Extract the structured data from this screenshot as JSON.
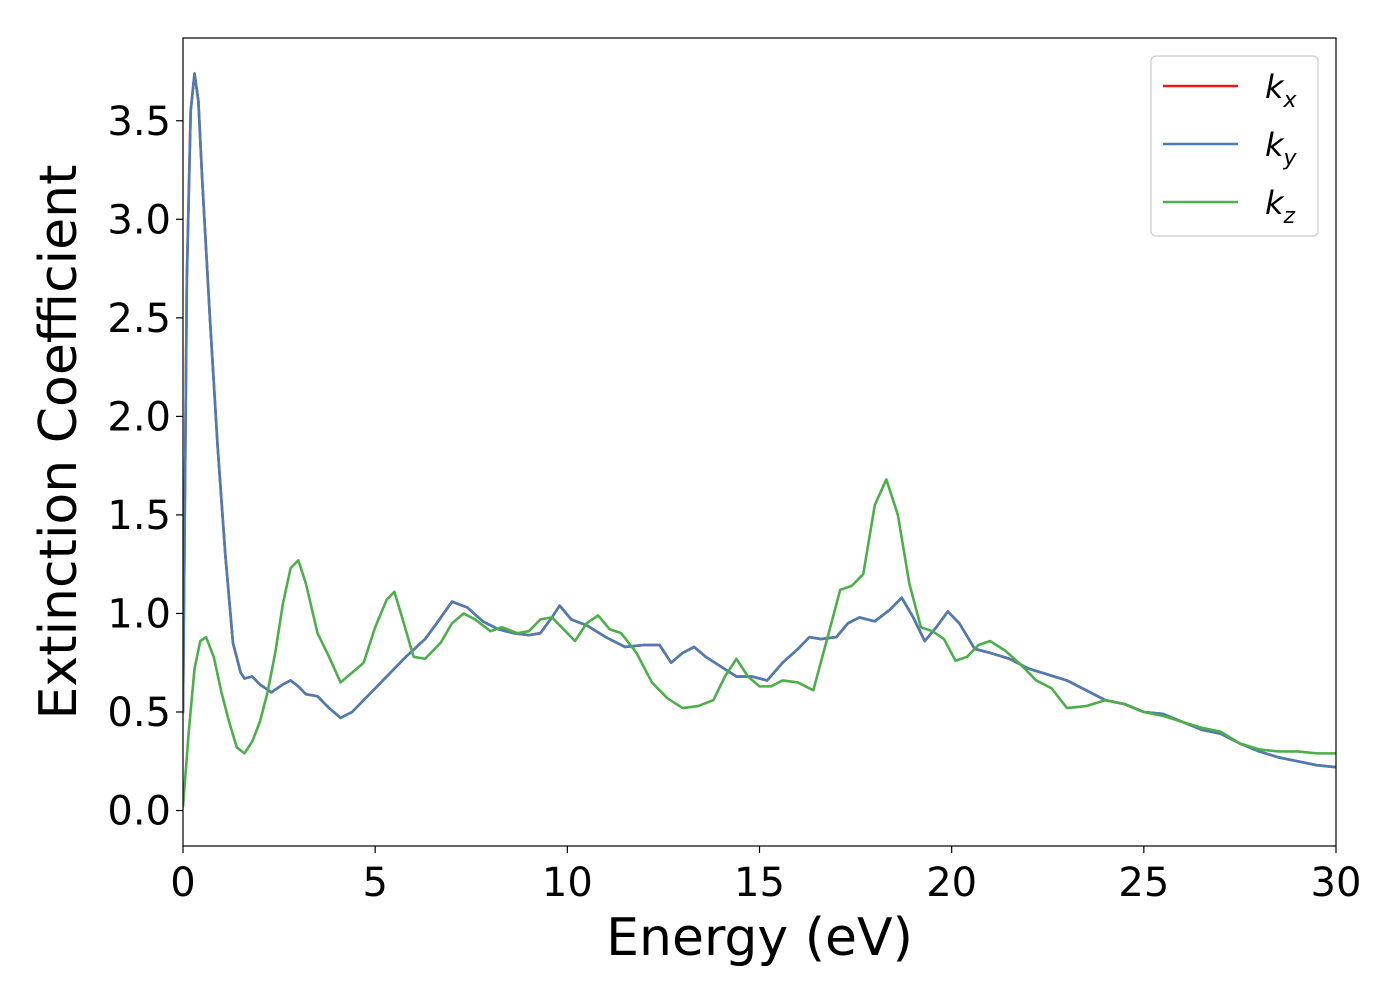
{
  "chart_data": {
    "type": "line",
    "xlabel": "Energy (eV)",
    "ylabel": "Extinction Coefficient",
    "xlim": [
      0,
      30
    ],
    "ylim": [
      -0.18,
      3.92
    ],
    "x_ticks": [
      0,
      5,
      10,
      15,
      20,
      25,
      30
    ],
    "y_ticks": [
      0.0,
      0.5,
      1.0,
      1.5,
      2.0,
      2.5,
      3.0,
      3.5
    ],
    "x_tick_labels": [
      "0",
      "5",
      "10",
      "15",
      "20",
      "25",
      "30"
    ],
    "y_tick_labels": [
      "0.0",
      "0.5",
      "1.0",
      "1.5",
      "2.0",
      "2.5",
      "3.0",
      "3.5"
    ],
    "grid": false,
    "legend_position": "top-right",
    "series": [
      {
        "name": "k_x",
        "label_main": "k",
        "label_sub": "x",
        "color": "#e41a1c",
        "x": [
          0,
          0.05,
          0.1,
          0.2,
          0.3,
          0.4,
          0.5,
          0.7,
          0.9,
          1.1,
          1.3,
          1.5,
          1.6,
          1.8,
          2.0,
          2.3,
          2.6,
          2.8,
          3.0,
          3.2,
          3.5,
          3.8,
          4.1,
          4.4,
          4.8,
          5.3,
          5.8,
          6.3,
          6.6,
          7.0,
          7.4,
          7.8,
          8.2,
          8.6,
          9.0,
          9.3,
          9.6,
          9.8,
          10.1,
          10.5,
          11.0,
          11.5,
          12.0,
          12.4,
          12.7,
          13.0,
          13.3,
          13.6,
          14.0,
          14.4,
          14.8,
          15.2,
          15.6,
          16.0,
          16.3,
          16.6,
          17.0,
          17.3,
          17.6,
          18.0,
          18.4,
          18.7,
          19.0,
          19.3,
          19.6,
          19.9,
          20.2,
          20.6,
          21.0,
          21.5,
          22.0,
          22.5,
          23.0,
          23.5,
          24.0,
          24.5,
          25.0,
          25.5,
          26.0,
          26.5,
          27.0,
          27.5,
          28.0,
          28.5,
          29.0,
          29.5,
          30.0
        ],
        "y": [
          0.5,
          1.6,
          2.7,
          3.55,
          3.74,
          3.6,
          3.2,
          2.5,
          1.85,
          1.3,
          0.85,
          0.7,
          0.67,
          0.68,
          0.64,
          0.6,
          0.64,
          0.66,
          0.63,
          0.59,
          0.58,
          0.52,
          0.47,
          0.5,
          0.58,
          0.68,
          0.78,
          0.87,
          0.95,
          1.06,
          1.03,
          0.96,
          0.92,
          0.9,
          0.89,
          0.9,
          0.98,
          1.04,
          0.97,
          0.94,
          0.88,
          0.83,
          0.84,
          0.84,
          0.75,
          0.8,
          0.83,
          0.78,
          0.73,
          0.68,
          0.68,
          0.66,
          0.75,
          0.82,
          0.88,
          0.87,
          0.88,
          0.95,
          0.98,
          0.96,
          1.02,
          1.08,
          0.98,
          0.86,
          0.93,
          1.01,
          0.95,
          0.82,
          0.8,
          0.77,
          0.72,
          0.69,
          0.66,
          0.61,
          0.56,
          0.54,
          0.5,
          0.49,
          0.45,
          0.41,
          0.39,
          0.34,
          0.3,
          0.27,
          0.25,
          0.23,
          0.22
        ]
      },
      {
        "name": "k_y",
        "label_main": "k",
        "label_sub": "y",
        "color": "#4a7db5",
        "x": [
          0,
          0.05,
          0.1,
          0.2,
          0.3,
          0.4,
          0.5,
          0.7,
          0.9,
          1.1,
          1.3,
          1.5,
          1.6,
          1.8,
          2.0,
          2.3,
          2.6,
          2.8,
          3.0,
          3.2,
          3.5,
          3.8,
          4.1,
          4.4,
          4.8,
          5.3,
          5.8,
          6.3,
          6.6,
          7.0,
          7.4,
          7.8,
          8.2,
          8.6,
          9.0,
          9.3,
          9.6,
          9.8,
          10.1,
          10.5,
          11.0,
          11.5,
          12.0,
          12.4,
          12.7,
          13.0,
          13.3,
          13.6,
          14.0,
          14.4,
          14.8,
          15.2,
          15.6,
          16.0,
          16.3,
          16.6,
          17.0,
          17.3,
          17.6,
          18.0,
          18.4,
          18.7,
          19.0,
          19.3,
          19.6,
          19.9,
          20.2,
          20.6,
          21.0,
          21.5,
          22.0,
          22.5,
          23.0,
          23.5,
          24.0,
          24.5,
          25.0,
          25.5,
          26.0,
          26.5,
          27.0,
          27.5,
          28.0,
          28.5,
          29.0,
          29.5,
          30.0
        ],
        "y": [
          0.5,
          1.6,
          2.7,
          3.55,
          3.74,
          3.6,
          3.2,
          2.5,
          1.85,
          1.3,
          0.85,
          0.7,
          0.67,
          0.68,
          0.64,
          0.6,
          0.64,
          0.66,
          0.63,
          0.59,
          0.58,
          0.52,
          0.47,
          0.5,
          0.58,
          0.68,
          0.78,
          0.87,
          0.95,
          1.06,
          1.03,
          0.96,
          0.92,
          0.9,
          0.89,
          0.9,
          0.98,
          1.04,
          0.97,
          0.94,
          0.88,
          0.83,
          0.84,
          0.84,
          0.75,
          0.8,
          0.83,
          0.78,
          0.73,
          0.68,
          0.68,
          0.66,
          0.75,
          0.82,
          0.88,
          0.87,
          0.88,
          0.95,
          0.98,
          0.96,
          1.02,
          1.08,
          0.98,
          0.86,
          0.93,
          1.01,
          0.95,
          0.82,
          0.8,
          0.77,
          0.72,
          0.69,
          0.66,
          0.61,
          0.56,
          0.54,
          0.5,
          0.49,
          0.45,
          0.41,
          0.39,
          0.34,
          0.3,
          0.27,
          0.25,
          0.23,
          0.22
        ]
      },
      {
        "name": "k_z",
        "label_main": "k",
        "label_sub": "z",
        "color": "#4daf4a",
        "x": [
          0,
          0.15,
          0.3,
          0.45,
          0.6,
          0.8,
          1.0,
          1.2,
          1.4,
          1.6,
          1.8,
          2.0,
          2.2,
          2.4,
          2.6,
          2.8,
          3.0,
          3.2,
          3.5,
          3.8,
          4.1,
          4.4,
          4.7,
          5.0,
          5.3,
          5.5,
          5.7,
          6.0,
          6.3,
          6.7,
          7.0,
          7.3,
          7.6,
          8.0,
          8.3,
          8.7,
          9.0,
          9.3,
          9.6,
          9.9,
          10.2,
          10.5,
          10.8,
          11.1,
          11.4,
          11.8,
          12.2,
          12.6,
          13.0,
          13.4,
          13.8,
          14.1,
          14.4,
          14.7,
          15.0,
          15.3,
          15.6,
          16.0,
          16.4,
          16.8,
          17.1,
          17.4,
          17.7,
          18.0,
          18.3,
          18.6,
          18.9,
          19.2,
          19.5,
          19.8,
          20.1,
          20.4,
          20.7,
          21.0,
          21.4,
          21.8,
          22.2,
          22.6,
          23.0,
          23.5,
          24.0,
          24.5,
          25.0,
          25.5,
          26.0,
          26.5,
          27.0,
          27.5,
          28.0,
          28.5,
          29.0,
          29.5,
          30.0
        ],
        "y": [
          0.02,
          0.4,
          0.72,
          0.86,
          0.88,
          0.78,
          0.6,
          0.45,
          0.32,
          0.29,
          0.35,
          0.45,
          0.6,
          0.8,
          1.05,
          1.23,
          1.27,
          1.15,
          0.9,
          0.78,
          0.65,
          0.7,
          0.75,
          0.93,
          1.07,
          1.11,
          0.98,
          0.78,
          0.77,
          0.85,
          0.95,
          1.0,
          0.97,
          0.91,
          0.93,
          0.9,
          0.91,
          0.97,
          0.98,
          0.92,
          0.86,
          0.95,
          0.99,
          0.92,
          0.9,
          0.8,
          0.65,
          0.57,
          0.52,
          0.53,
          0.56,
          0.68,
          0.77,
          0.68,
          0.63,
          0.63,
          0.66,
          0.65,
          0.61,
          0.9,
          1.12,
          1.14,
          1.2,
          1.55,
          1.68,
          1.5,
          1.15,
          0.93,
          0.91,
          0.87,
          0.76,
          0.78,
          0.84,
          0.86,
          0.81,
          0.74,
          0.66,
          0.62,
          0.52,
          0.53,
          0.56,
          0.54,
          0.5,
          0.48,
          0.45,
          0.42,
          0.4,
          0.34,
          0.31,
          0.3,
          0.3,
          0.29,
          0.29
        ]
      }
    ]
  }
}
